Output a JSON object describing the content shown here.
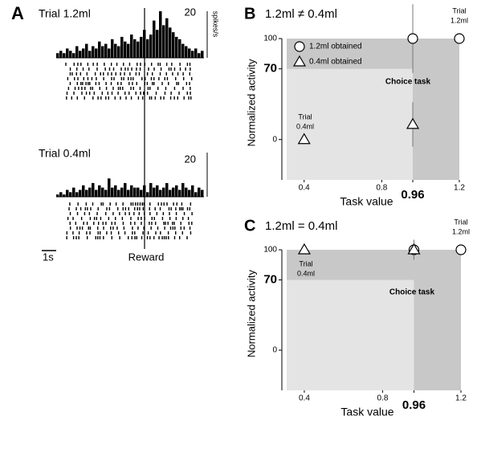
{
  "chart_data": [
    {
      "type": "bar",
      "panel_label": "A",
      "title": "Trial 1.2ml",
      "scale_label": "20",
      "unit_label": "spikes/s",
      "ylim": [
        0,
        20
      ],
      "color": "#000000",
      "values": [
        2,
        3,
        2,
        4,
        3,
        2,
        5,
        3,
        4,
        6,
        3,
        5,
        4,
        7,
        5,
        6,
        4,
        8,
        6,
        5,
        9,
        7,
        6,
        10,
        8,
        7,
        9,
        12,
        8,
        10,
        16,
        12,
        20,
        14,
        17,
        13,
        11,
        9,
        8,
        6,
        5,
        4,
        3,
        4,
        2,
        3
      ]
    },
    {
      "type": "bar",
      "title": "Trial 0.4ml",
      "scale_label": "20",
      "time_scale_label": "1s",
      "event_label": "Reward",
      "ylim": [
        0,
        20
      ],
      "color": "#000000",
      "values": [
        1,
        2,
        1,
        3,
        2,
        4,
        2,
        3,
        5,
        3,
        4,
        6,
        3,
        5,
        4,
        3,
        8,
        4,
        5,
        3,
        4,
        6,
        3,
        5,
        4,
        4,
        3,
        5,
        2,
        6,
        4,
        5,
        3,
        4,
        6,
        3,
        4,
        5,
        3,
        6,
        4,
        3,
        5,
        2,
        4,
        3
      ]
    },
    {
      "type": "scatter",
      "panel_label": "B",
      "title": "1.2ml ≠ 0.4ml",
      "xlabel": "Task value",
      "ylabel": "Normalized activity",
      "xlim": [
        0.31,
        1.2
      ],
      "ylim": [
        -40,
        100
      ],
      "xticks": [
        0.4,
        0.8,
        0.96,
        1.2
      ],
      "yticks": [
        0,
        70,
        100
      ],
      "threshold_x": 0.96,
      "threshold_y": 70,
      "region_label": "Choice task",
      "series": [
        {
          "name": "1.2ml obtained",
          "marker": "circle",
          "x": [
            0.96,
            1.2
          ],
          "values": [
            100,
            100
          ],
          "errors": [
            34,
            null
          ]
        },
        {
          "name": "0.4ml obtained",
          "marker": "triangle",
          "x": [
            0.4,
            0.96
          ],
          "values": [
            0,
            15
          ],
          "errors": [
            null,
            22
          ]
        }
      ],
      "annotations": [
        [
          "Trial",
          "1.2ml"
        ],
        [
          "Trial",
          "0.4ml"
        ]
      ]
    },
    {
      "type": "scatter",
      "panel_label": "C",
      "title": "1.2ml = 0.4ml",
      "xlabel": "Task value",
      "ylabel": "Normalized activity",
      "xlim": [
        0.31,
        1.2
      ],
      "ylim": [
        -40,
        100
      ],
      "xticks": [
        0.4,
        0.8,
        0.96,
        1.2
      ],
      "yticks": [
        0,
        70,
        100
      ],
      "threshold_x": 0.96,
      "threshold_y": 70,
      "region_label": "Choice task",
      "series": [
        {
          "marker": "circle",
          "x": [
            0.96,
            1.2
          ],
          "values": [
            100,
            100
          ],
          "errors": [
            10,
            null
          ]
        },
        {
          "marker": "triangle",
          "x": [
            0.4,
            0.96
          ],
          "values": [
            100,
            100
          ],
          "errors": [
            null,
            10
          ]
        }
      ],
      "annotations": [
        [
          "Trial",
          "1.2ml"
        ],
        [
          "Trial",
          "0.4ml"
        ]
      ]
    }
  ]
}
